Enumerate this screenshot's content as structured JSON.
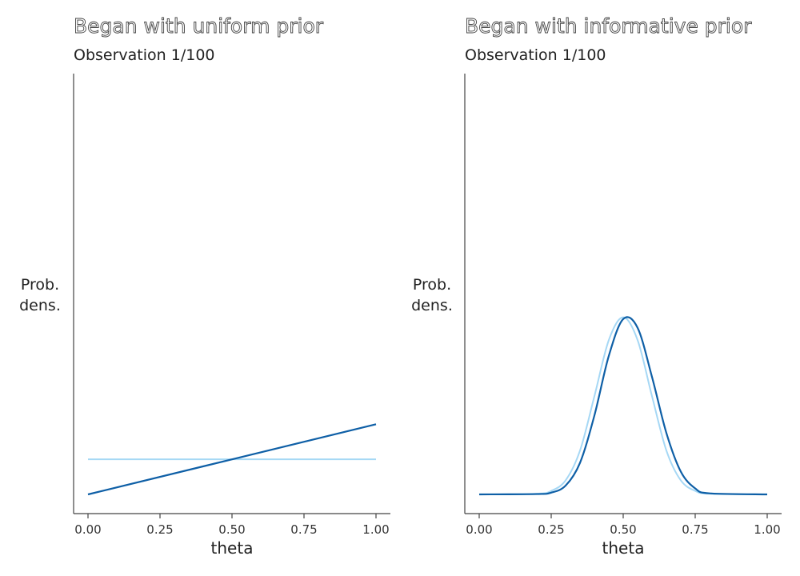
{
  "chart_data": [
    {
      "type": "line",
      "title": "Began with uniform prior",
      "subtitle": "Observation 1/100",
      "xlabel": "theta",
      "ylabel": [
        "Prob.",
        "dens."
      ],
      "xlim": [
        0,
        1
      ],
      "ylim": [
        0,
        12
      ],
      "x_ticks": [
        "0.00",
        "0.25",
        "0.50",
        "0.75",
        "1.00"
      ],
      "grid": false,
      "series": [
        {
          "color": "#a6d8f5",
          "x": [
            0,
            1
          ],
          "y": [
            1,
            1
          ]
        },
        {
          "color": "#0e5fa6",
          "x": [
            0,
            1
          ],
          "y": [
            0,
            2
          ]
        }
      ]
    },
    {
      "type": "line",
      "title": "Began with informative prior",
      "subtitle": "Observation 1/100",
      "xlabel": "theta",
      "ylabel": [
        "Prob.",
        "dens."
      ],
      "xlim": [
        0,
        1
      ],
      "ylim": [
        0,
        12
      ],
      "x_ticks": [
        "0.00",
        "0.25",
        "0.50",
        "0.75",
        "1.00"
      ],
      "grid": false,
      "series": [
        {
          "color": "#a6d8f5",
          "x": [
            0,
            0.2,
            0.25,
            0.3,
            0.35,
            0.4,
            0.45,
            0.5,
            0.55,
            0.6,
            0.65,
            0.7,
            0.75,
            0.8,
            1
          ],
          "y": [
            0,
            0.02,
            0.1,
            0.4,
            1.25,
            2.8,
            4.4,
            5.05,
            4.4,
            2.8,
            1.25,
            0.4,
            0.1,
            0.02,
            0
          ]
        },
        {
          "color": "#0e5fa6",
          "x": [
            0,
            0.2,
            0.25,
            0.3,
            0.35,
            0.4,
            0.45,
            0.5,
            0.55,
            0.6,
            0.65,
            0.7,
            0.75,
            0.8,
            1
          ],
          "y": [
            0,
            0.01,
            0.05,
            0.25,
            0.9,
            2.25,
            3.95,
            5.0,
            4.75,
            3.35,
            1.75,
            0.65,
            0.17,
            0.03,
            0
          ]
        }
      ]
    }
  ]
}
